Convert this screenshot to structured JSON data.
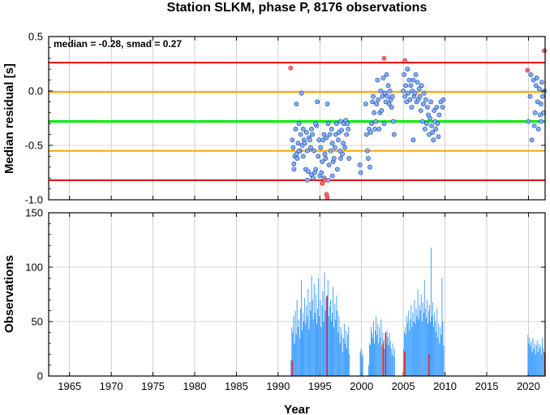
{
  "title": "Station SLKM, phase P, 8176 observations",
  "colors": {
    "median": "#00ee00",
    "inner": "#ffa500",
    "outer": "#ee0000",
    "point": "#7fb0ff",
    "point_edge": "#1f3f8f",
    "outlier": "#ff6666",
    "bar": "#3399ff",
    "bar_red": "#ee2222"
  },
  "chart_data": [
    {
      "type": "scatter",
      "ylabel": "Median residual [s]",
      "xlim": [
        1962.5,
        2022
      ],
      "ylim": [
        -1.0,
        0.5
      ],
      "yticks": [
        "0.5",
        "0.0",
        "-0.5",
        "-1.0"
      ],
      "yticks_values": [
        0.5,
        0.0,
        -0.5,
        -1.0
      ],
      "annotation": "median = -0.28, smad = 0.27",
      "lines": {
        "median": -0.28,
        "inner": [
          -0.01,
          -0.55
        ],
        "outer": [
          0.26,
          -0.82
        ]
      },
      "points": [
        [
          1991.7,
          -0.45
        ],
        [
          1991.8,
          -0.52
        ],
        [
          1991.9,
          -0.67
        ],
        [
          1992.0,
          -0.6
        ],
        [
          1992.1,
          -0.35
        ],
        [
          1992.2,
          -0.58
        ],
        [
          1992.3,
          -0.62
        ],
        [
          1992.4,
          -0.48
        ],
        [
          1992.5,
          -0.3
        ],
        [
          1992.6,
          -0.55
        ],
        [
          1992.7,
          -0.4
        ],
        [
          1992.8,
          -0.02
        ],
        [
          1992.9,
          -0.5
        ],
        [
          1993.0,
          -0.35
        ],
        [
          1993.1,
          -0.45
        ],
        [
          1993.2,
          -0.48
        ],
        [
          1993.3,
          -0.72
        ],
        [
          1993.4,
          -0.38
        ],
        [
          1993.5,
          -0.55
        ],
        [
          1993.6,
          -0.74
        ],
        [
          1993.7,
          -0.43
        ],
        [
          1993.8,
          -0.45
        ],
        [
          1993.9,
          -0.52
        ],
        [
          1994.0,
          -0.77
        ],
        [
          1994.1,
          -0.4
        ],
        [
          1994.2,
          -0.8
        ],
        [
          1994.3,
          -0.55
        ],
        [
          1994.4,
          -0.75
        ],
        [
          1994.5,
          -0.72
        ],
        [
          1994.6,
          -0.32
        ],
        [
          1994.7,
          -0.1
        ],
        [
          1994.8,
          -0.6
        ],
        [
          1994.9,
          -0.45
        ],
        [
          1995.0,
          -0.78
        ],
        [
          1995.1,
          -0.52
        ],
        [
          1995.2,
          -0.75
        ],
        [
          1995.3,
          -0.65
        ],
        [
          1995.4,
          -0.45
        ],
        [
          1995.5,
          -0.4
        ],
        [
          1995.6,
          -0.58
        ],
        [
          1995.7,
          -0.62
        ],
        [
          1995.8,
          -0.43
        ],
        [
          1995.9,
          -0.12
        ],
        [
          1996.0,
          -0.3
        ],
        [
          1996.1,
          -0.68
        ],
        [
          1996.2,
          -0.4
        ],
        [
          1996.3,
          -0.55
        ],
        [
          1996.4,
          -0.35
        ],
        [
          1996.5,
          -0.48
        ],
        [
          1996.6,
          -0.65
        ],
        [
          1996.7,
          -0.62
        ],
        [
          1996.8,
          -0.52
        ],
        [
          1996.9,
          -0.4
        ],
        [
          1997.0,
          -0.3
        ],
        [
          1997.1,
          -0.72
        ],
        [
          1997.2,
          -0.45
        ],
        [
          1997.3,
          -0.38
        ],
        [
          1997.4,
          -0.55
        ],
        [
          1997.5,
          -0.28
        ],
        [
          1997.6,
          -0.36
        ],
        [
          1997.7,
          -0.58
        ],
        [
          1997.8,
          -0.48
        ],
        [
          1997.9,
          -0.3
        ],
        [
          1998.0,
          -0.52
        ],
        [
          1998.1,
          -0.27
        ],
        [
          1998.2,
          -0.4
        ],
        [
          1998.3,
          -0.3
        ],
        [
          1998.4,
          -0.35
        ],
        [
          1998.5,
          -0.62
        ],
        [
          1993.5,
          -0.82
        ],
        [
          1994.5,
          -0.3
        ],
        [
          1995.5,
          -0.8
        ],
        [
          1996.5,
          -0.78
        ],
        [
          1997.5,
          -0.62
        ],
        [
          1992.5,
          -0.55
        ],
        [
          1991.9,
          -0.72
        ],
        [
          1992.2,
          -0.12
        ],
        [
          1993.0,
          -0.6
        ],
        [
          1994.0,
          -0.35
        ],
        [
          1996.0,
          -0.82
        ],
        [
          1999.8,
          -0.68
        ],
        [
          1999.9,
          -0.75
        ],
        [
          2000.5,
          -0.12
        ],
        [
          2000.6,
          -0.4
        ],
        [
          2000.7,
          -0.55
        ],
        [
          2000.8,
          -0.62
        ],
        [
          2000.9,
          -0.35
        ],
        [
          2001.0,
          -0.7
        ],
        [
          2001.1,
          -0.38
        ],
        [
          2001.2,
          -0.3
        ],
        [
          2001.3,
          -0.1
        ],
        [
          2001.4,
          -0.05
        ],
        [
          2001.5,
          -0.2
        ],
        [
          2001.6,
          -0.35
        ],
        [
          2001.7,
          -0.28
        ],
        [
          2001.8,
          -0.12
        ],
        [
          2001.9,
          0.1
        ],
        [
          2002.0,
          -0.08
        ],
        [
          2002.1,
          -0.35
        ],
        [
          2002.2,
          -0.2
        ],
        [
          2002.3,
          0.0
        ],
        [
          2002.4,
          -0.18
        ],
        [
          2002.5,
          -0.05
        ],
        [
          2002.6,
          0.12
        ],
        [
          2002.7,
          -0.3
        ],
        [
          2002.8,
          -0.02
        ],
        [
          2002.9,
          -0.1
        ],
        [
          2003.0,
          0.15
        ],
        [
          2003.1,
          -0.05
        ],
        [
          2003.2,
          0.05
        ],
        [
          2003.3,
          -0.12
        ],
        [
          2003.4,
          0.0
        ],
        [
          2003.5,
          -0.08
        ],
        [
          2003.6,
          -0.15
        ],
        [
          2003.7,
          -0.05
        ],
        [
          2003.8,
          -0.28
        ],
        [
          2003.9,
          -0.4
        ],
        [
          2005.0,
          0.0
        ],
        [
          2005.1,
          0.15
        ],
        [
          2005.2,
          -0.05
        ],
        [
          2005.3,
          0.05
        ],
        [
          2005.4,
          -0.1
        ],
        [
          2005.5,
          0.2
        ],
        [
          2005.6,
          -0.02
        ],
        [
          2005.7,
          0.1
        ],
        [
          2005.8,
          -0.08
        ],
        [
          2005.9,
          0.05
        ],
        [
          2006.0,
          -0.15
        ],
        [
          2006.1,
          0.0
        ],
        [
          2006.2,
          0.1
        ],
        [
          2006.3,
          -0.05
        ],
        [
          2006.4,
          -0.02
        ],
        [
          2006.5,
          0.15
        ],
        [
          2006.6,
          -0.1
        ],
        [
          2006.7,
          0.08
        ],
        [
          2006.8,
          -0.08
        ],
        [
          2006.9,
          0.02
        ],
        [
          2007.0,
          -0.05
        ],
        [
          2007.1,
          -0.18
        ],
        [
          2007.2,
          0.05
        ],
        [
          2007.3,
          -0.28
        ],
        [
          2007.4,
          -0.12
        ],
        [
          2007.5,
          -0.02
        ],
        [
          2007.6,
          -0.35
        ],
        [
          2007.7,
          -0.08
        ],
        [
          2007.8,
          -0.3
        ],
        [
          2007.9,
          -0.15
        ],
        [
          2008.0,
          -0.22
        ],
        [
          2008.1,
          -0.4
        ],
        [
          2008.2,
          -0.25
        ],
        [
          2008.3,
          -0.1
        ],
        [
          2008.4,
          -0.32
        ],
        [
          2008.5,
          -0.38
        ],
        [
          2008.6,
          -0.45
        ],
        [
          2008.7,
          -0.18
        ],
        [
          2008.8,
          -0.28
        ],
        [
          2008.9,
          -0.35
        ],
        [
          2009.0,
          -0.15
        ],
        [
          2009.1,
          -0.3
        ],
        [
          2009.2,
          -0.42
        ],
        [
          2009.3,
          -0.22
        ],
        [
          2009.5,
          -0.1
        ],
        [
          2009.7,
          -0.15
        ],
        [
          2009.8,
          -0.08
        ],
        [
          2006.2,
          -0.45
        ],
        [
          2020.0,
          -0.28
        ],
        [
          2020.2,
          -0.05
        ],
        [
          2020.4,
          -0.45
        ],
        [
          2020.6,
          0.1
        ],
        [
          2020.8,
          -0.2
        ],
        [
          2020.9,
          0.05
        ],
        [
          2021.0,
          0.12
        ],
        [
          2021.1,
          -0.1
        ],
        [
          2021.2,
          -0.35
        ],
        [
          2021.3,
          0.02
        ],
        [
          2021.4,
          -0.22
        ],
        [
          2021.5,
          -0.12
        ],
        [
          2021.6,
          0.08
        ],
        [
          2021.7,
          -0.05
        ],
        [
          2021.8,
          -0.2
        ],
        [
          2021.9,
          0.0
        ],
        [
          2020.3,
          0.15
        ],
        [
          2020.7,
          -0.32
        ],
        [
          2021.5,
          -0.28
        ]
      ],
      "outliers": [
        [
          1991.5,
          0.21
        ],
        [
          2002.7,
          0.3
        ],
        [
          2005.2,
          0.28
        ],
        [
          2019.9,
          0.19
        ],
        [
          2021.9,
          0.37
        ],
        [
          1995.3,
          -0.85
        ],
        [
          1995.6,
          -0.82
        ],
        [
          1995.8,
          -0.95
        ],
        [
          1995.9,
          -0.98
        ]
      ]
    },
    {
      "type": "bar",
      "xlabel": "Year",
      "ylabel": "Observations",
      "xlim": [
        1962.5,
        2022
      ],
      "ylim": [
        0,
        150
      ],
      "xticks": [
        "1965",
        "1970",
        "1975",
        "1980",
        "1985",
        "1990",
        "1995",
        "2000",
        "2005",
        "2010",
        "2015",
        "2020"
      ],
      "xticks_values": [
        1965,
        1970,
        1975,
        1980,
        1985,
        1990,
        1995,
        2000,
        2005,
        2010,
        2015,
        2020
      ],
      "yticks": [
        "150",
        "100",
        "50",
        "0"
      ],
      "yticks_values": [
        150,
        100,
        50,
        0
      ],
      "segments": [
        {
          "start": 1991.5,
          "end": 1998.6,
          "values": [
            15,
            45,
            40,
            55,
            30,
            60,
            38,
            70,
            45,
            52,
            35,
            62,
            88,
            42,
            58,
            50,
            72,
            48,
            65,
            55,
            80,
            43,
            68,
            60,
            92,
            70,
            52,
            85,
            58,
            75,
            48,
            62,
            90,
            55,
            70,
            45,
            65,
            78,
            50,
            95,
            60,
            72,
            40,
            88,
            55,
            64,
            70,
            50,
            58,
            82,
            45,
            66,
            52,
            74,
            60,
            40,
            55,
            30,
            45,
            38,
            22,
            35,
            48,
            30,
            42,
            25,
            38,
            45,
            20
          ]
        },
        {
          "start": 1999.8,
          "end": 2000.2,
          "values": [
            22,
            25,
            18,
            20
          ]
        },
        {
          "start": 2000.8,
          "end": 2004.0,
          "values": [
            10,
            30,
            28,
            45,
            40,
            35,
            50,
            30,
            42,
            55,
            38,
            48,
            30,
            45,
            35,
            52,
            28,
            40,
            33,
            25,
            38,
            30,
            42,
            36,
            28,
            40,
            32,
            25,
            20,
            30,
            18,
            25
          ]
        },
        {
          "start": 2005.0,
          "end": 2009.9,
          "values": [
            25,
            40,
            45,
            38,
            55,
            48,
            60,
            42,
            52,
            65,
            45,
            58,
            50,
            70,
            48,
            62,
            55,
            80,
            52,
            65,
            60,
            75,
            50,
            68,
            58,
            88,
            62,
            54,
            70,
            48,
            60,
            65,
            50,
            118,
            55,
            68,
            45,
            58,
            50,
            40,
            62,
            35,
            48,
            30,
            45,
            38,
            90,
            50,
            28
          ]
        },
        {
          "start": 2019.9,
          "end": 2021.9,
          "values": [
            38,
            30,
            35,
            28,
            32,
            22,
            35,
            25,
            30,
            20,
            28,
            33,
            22,
            30,
            25,
            28,
            20,
            35,
            26,
            22
          ]
        }
      ],
      "red_bars": [
        [
          1991.6,
          14
        ],
        [
          1995.8,
          74
        ],
        [
          2002.5,
          30
        ],
        [
          2002.8,
          40
        ],
        [
          2005.1,
          22
        ],
        [
          2008.0,
          20
        ],
        [
          2021.9,
          22
        ]
      ]
    }
  ]
}
